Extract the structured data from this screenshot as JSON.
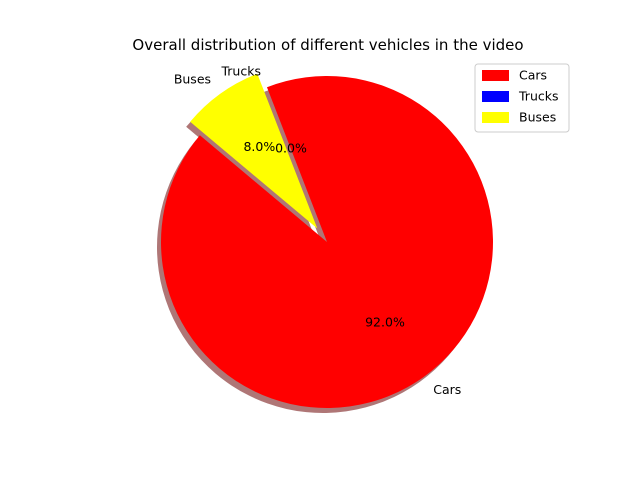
{
  "chart_data": {
    "type": "pie",
    "title": "Overall distribution of different vehicles in the video",
    "slices": [
      {
        "label": "Cars",
        "value": 92.0,
        "pct_label": "92.0%",
        "color": "#ff0000",
        "explode": 0
      },
      {
        "label": "Trucks",
        "value": 0.0,
        "pct_label": "0.0%",
        "color": "#0000ff",
        "explode": 0
      },
      {
        "label": "Buses",
        "value": 8.0,
        "pct_label": "8.0%",
        "color": "#ffff00",
        "explode": 0.1
      }
    ],
    "start_angle_deg": 140,
    "shadow": true,
    "legend": {
      "position": "top-right",
      "entries": [
        "Cars",
        "Trucks",
        "Buses"
      ]
    }
  }
}
